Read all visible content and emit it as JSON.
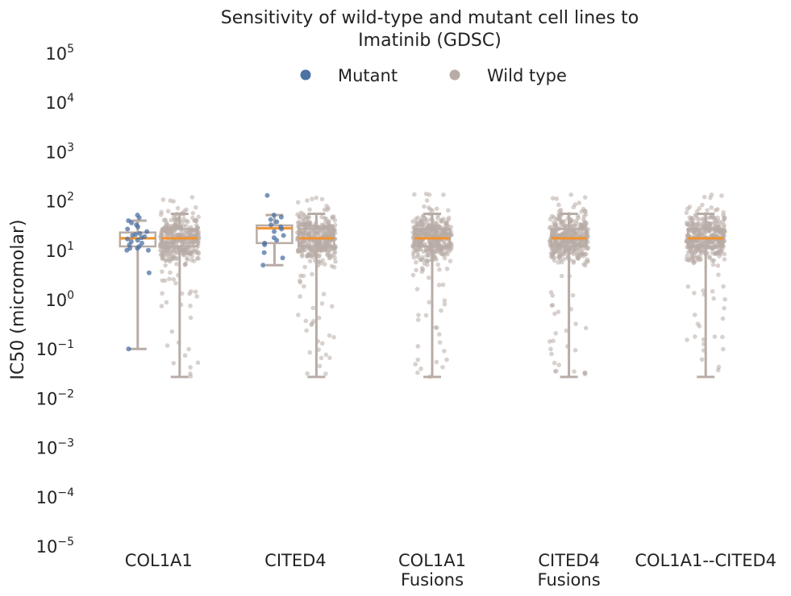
{
  "chart_data": {
    "type": "box",
    "title_line1": "Sensitivity of wild-type and mutant cell lines to",
    "title_line2": "Imatinib (GDSC)",
    "ylabel": "IC50 (micromolar)",
    "xlabel": "",
    "y_scale": "log",
    "ylim": [
      1e-05,
      100000
    ],
    "y_ticks": [
      {
        "base": "10",
        "exp": "5",
        "value": 100000
      },
      {
        "base": "10",
        "exp": "4",
        "value": 10000
      },
      {
        "base": "10",
        "exp": "3",
        "value": 1000
      },
      {
        "base": "10",
        "exp": "2",
        "value": 100
      },
      {
        "base": "10",
        "exp": "1",
        "value": 10
      },
      {
        "base": "10",
        "exp": "0",
        "value": 1
      },
      {
        "base": "10",
        "exp": "−1",
        "value": 0.1
      },
      {
        "base": "10",
        "exp": "−2",
        "value": 0.01
      },
      {
        "base": "10",
        "exp": "−3",
        "value": 0.001
      },
      {
        "base": "10",
        "exp": "−4",
        "value": 0.0001
      },
      {
        "base": "10",
        "exp": "−5",
        "value": 1e-05
      }
    ],
    "legend": {
      "position": "top-center",
      "items": [
        {
          "label": "Mutant",
          "color": "#4c72a4"
        },
        {
          "label": "Wild type",
          "color": "#b8aca6"
        }
      ]
    },
    "colors": {
      "mutant": "#4c72a4",
      "wild_type": "#b8aca6",
      "box": "#b8aca6",
      "median": "#f0922e"
    },
    "categories": [
      {
        "label_lines": [
          "COL1A1"
        ],
        "mutant": {
          "whisker_low": 0.1,
          "q1": 12,
          "median": 17.5,
          "q3": 23,
          "whisker_high": 40,
          "points": [
            52,
            46,
            40,
            36,
            33,
            30,
            27,
            24,
            22,
            21,
            20,
            19,
            18,
            17,
            16,
            15,
            14,
            13,
            12,
            11,
            11,
            10,
            10,
            3.5,
            0.1
          ]
        },
        "wild_type": {
          "whisker_low": 0.027,
          "q1": 12,
          "median": 17.5,
          "q3": 27,
          "whisker_high": 55
        }
      },
      {
        "label_lines": [
          "CITED4"
        ],
        "mutant": {
          "whisker_low": 5,
          "q1": 14,
          "median": 28,
          "q3": 32,
          "whisker_high": 52,
          "points": [
            130,
            52,
            47,
            42,
            38,
            33,
            30,
            27,
            24,
            20,
            18,
            16,
            14,
            13,
            9,
            7,
            5
          ]
        },
        "wild_type": {
          "whisker_low": 0.027,
          "q1": 12,
          "median": 17.5,
          "q3": 27,
          "whisker_high": 55
        }
      },
      {
        "label_lines": [
          "COL1A1",
          "Fusions"
        ],
        "mutant": null,
        "wild_type": {
          "whisker_low": 0.027,
          "q1": 12,
          "median": 17.5,
          "q3": 27,
          "whisker_high": 55
        }
      },
      {
        "label_lines": [
          "CITED4",
          "Fusions"
        ],
        "mutant": null,
        "wild_type": {
          "whisker_low": 0.027,
          "q1": 12,
          "median": 17.5,
          "q3": 27,
          "whisker_high": 55
        }
      },
      {
        "label_lines": [
          "COL1A1--CITED4"
        ],
        "mutant": null,
        "wild_type": {
          "whisker_low": 0.027,
          "q1": 12,
          "median": 17.5,
          "q3": 27,
          "whisker_high": 55
        }
      }
    ]
  }
}
